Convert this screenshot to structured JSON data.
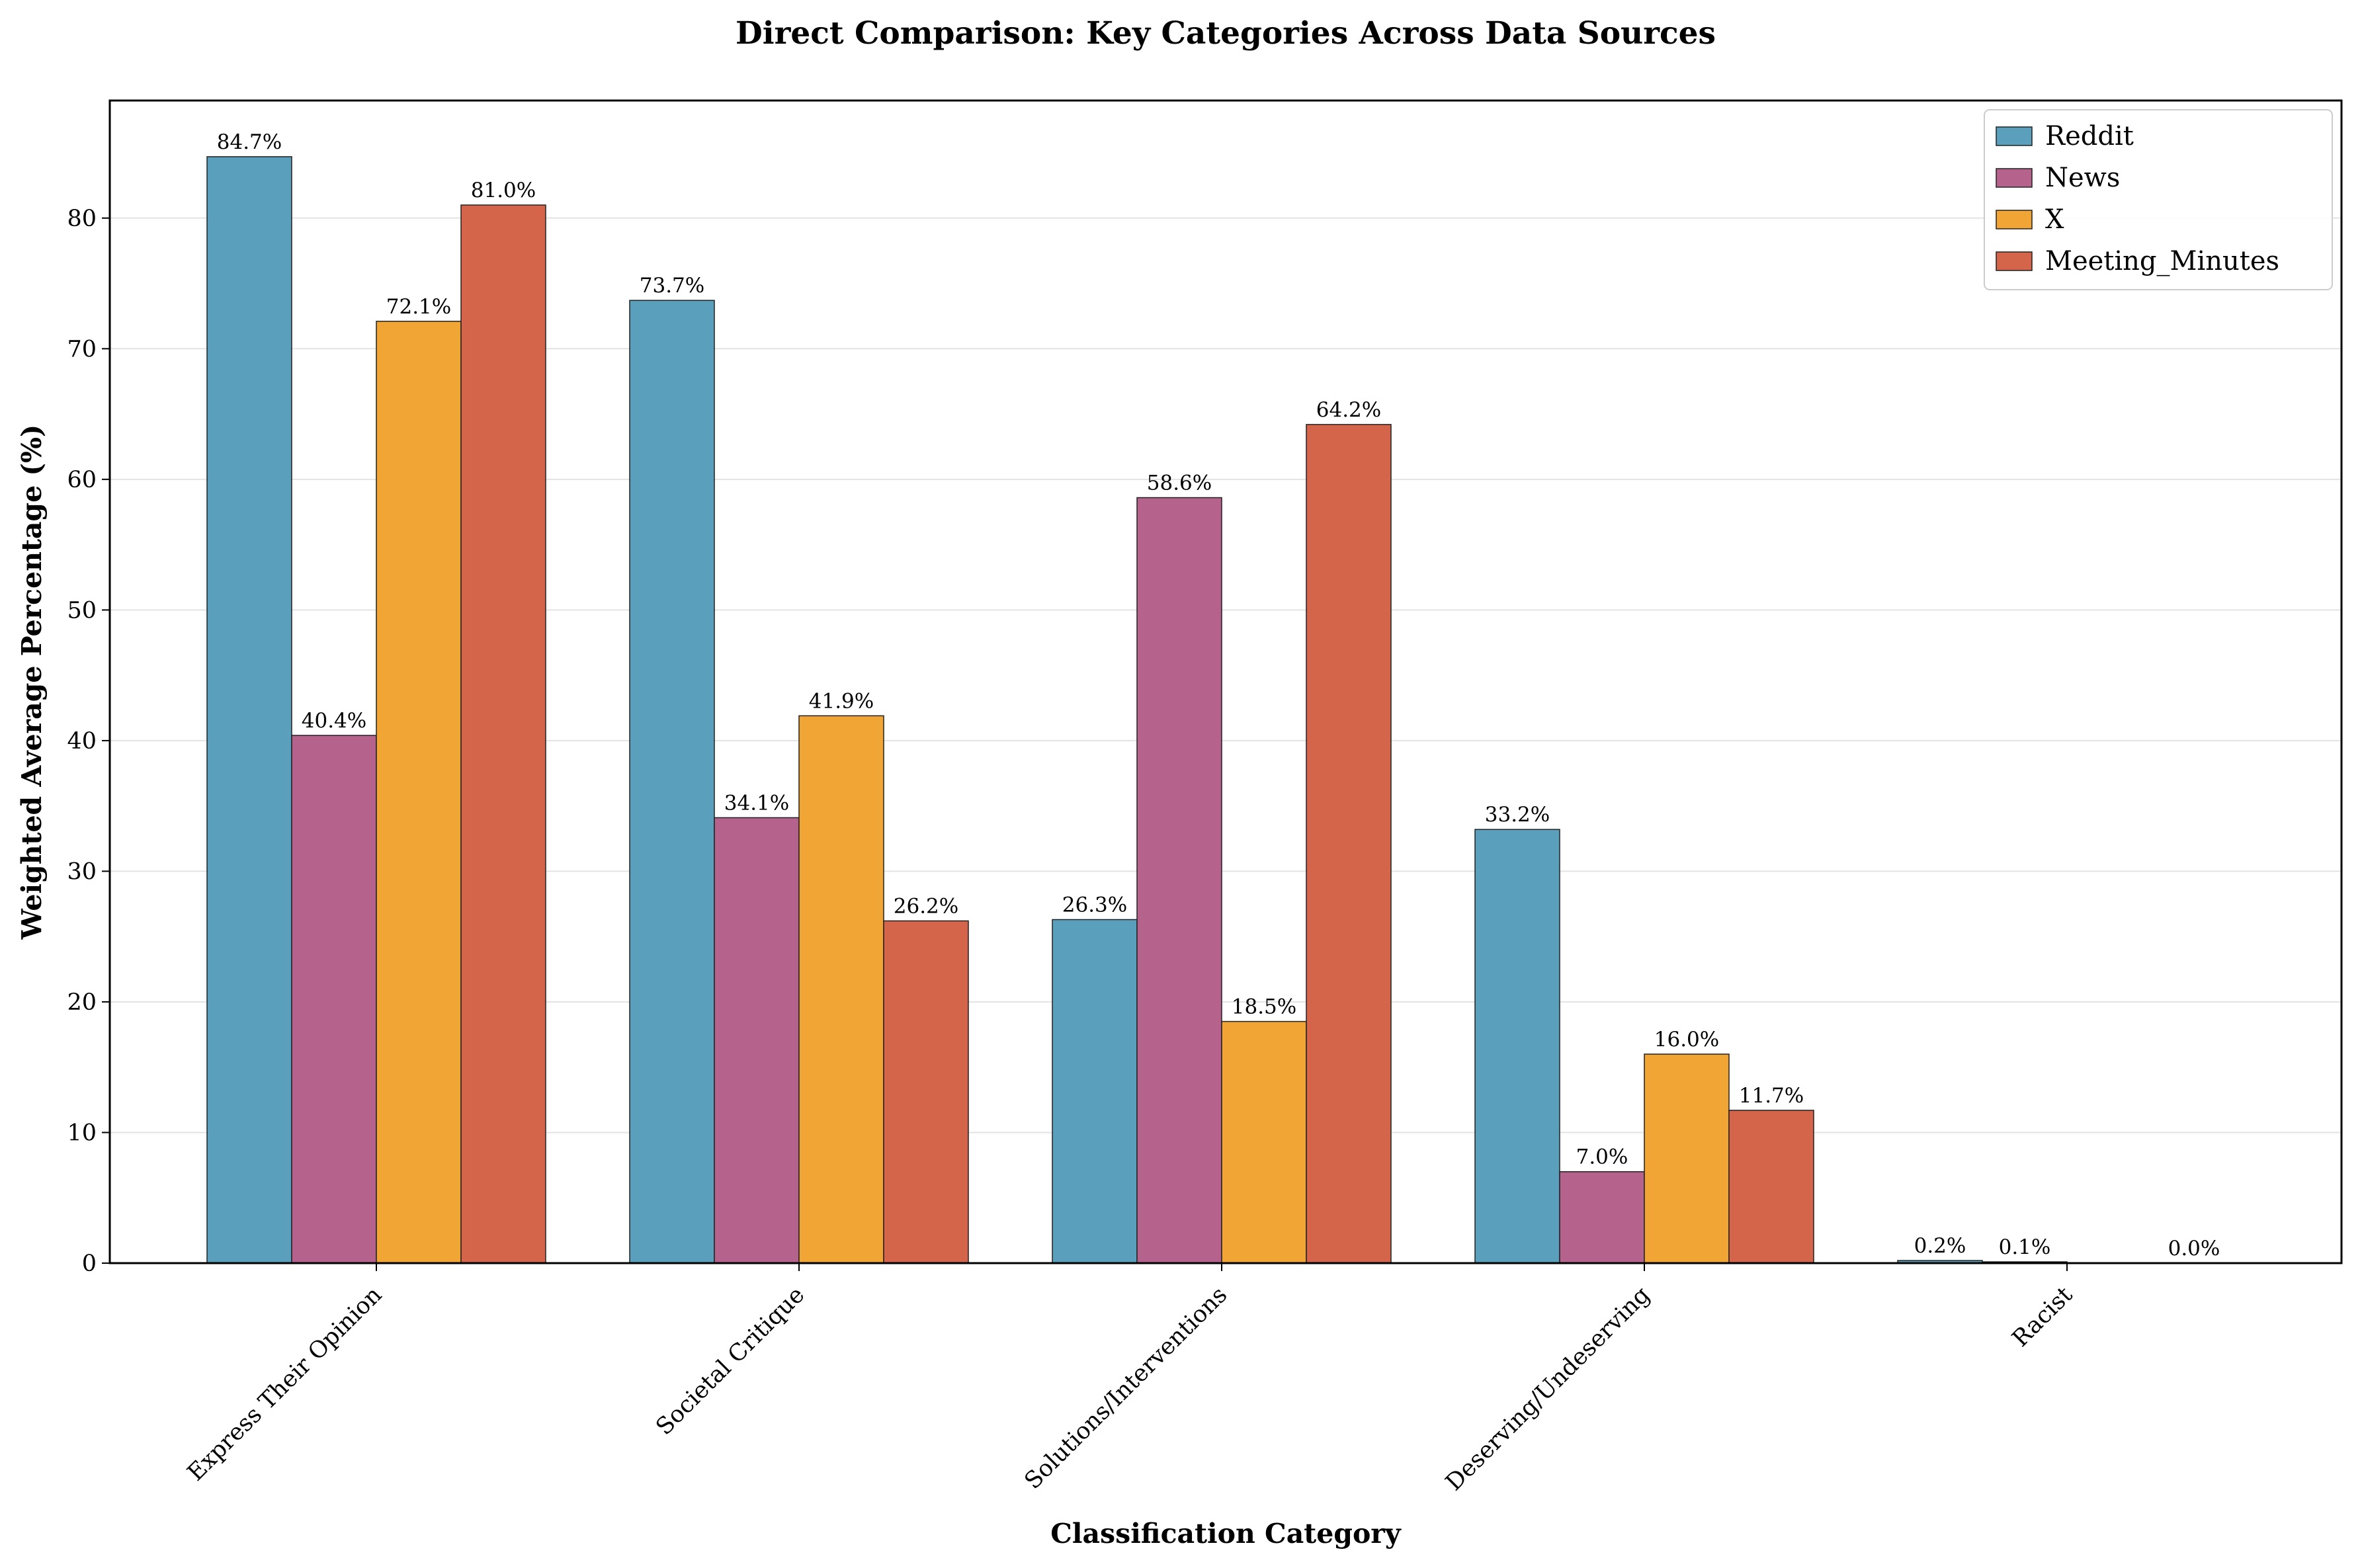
{
  "chart_data": {
    "type": "bar",
    "title": "Direct Comparison: Key Categories Across Data Sources",
    "xlabel": "Classification Category",
    "ylabel": "Weighted Average Percentage (%)",
    "categories": [
      "Express Their Opinion",
      "Societal Critique",
      "Solutions/Interventions",
      "Deserving/Undeserving",
      "Racist"
    ],
    "series": [
      {
        "name": "Reddit",
        "color": "#5a9fbc",
        "values": [
          84.7,
          73.7,
          26.3,
          33.2,
          0.2
        ],
        "labels": [
          "84.7%",
          "73.7%",
          "26.3%",
          "33.2%",
          "0.2%"
        ]
      },
      {
        "name": "News",
        "color": "#b5628c",
        "values": [
          40.4,
          34.1,
          58.6,
          7.0,
          0.1
        ],
        "labels": [
          "40.4%",
          "34.1%",
          "58.6%",
          "7.0%",
          "0.1%"
        ]
      },
      {
        "name": "X",
        "color": "#f0a535",
        "values": [
          72.1,
          41.9,
          18.5,
          16.0,
          0.0
        ],
        "labels": [
          "72.1%",
          "41.9%",
          "18.5%",
          "16.0%",
          ""
        ]
      },
      {
        "name": "Meeting_Minutes",
        "color": "#d5654a",
        "values": [
          81.0,
          26.2,
          64.2,
          11.7,
          0.0
        ],
        "labels": [
          "81.0%",
          "26.2%",
          "64.2%",
          "11.7%",
          "0.0%"
        ]
      }
    ],
    "ylim": [
      0,
      89
    ],
    "yticks": [
      0,
      10,
      20,
      30,
      40,
      50,
      60,
      70,
      80
    ],
    "grid": "y",
    "legend_position": "upper right"
  }
}
